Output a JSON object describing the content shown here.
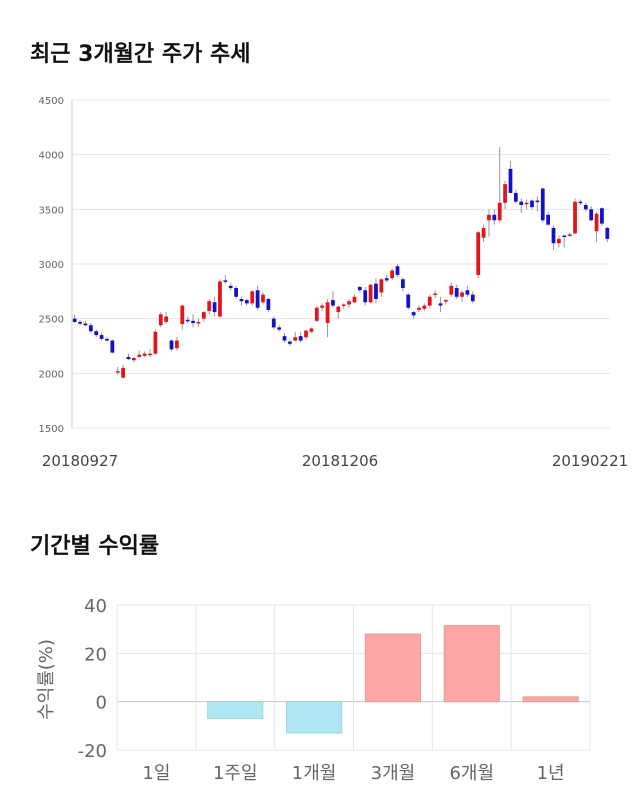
{
  "titles": {
    "price_trend": "최근 3개월간 주가 추세",
    "returns": "기간별 수익률"
  },
  "colors": {
    "up": "#e0161b",
    "down": "#1212c8",
    "positive_bar": "#ffa6a6",
    "negative_bar": "#aee6f2",
    "grid": "#e6e6e6"
  },
  "chart_data": [
    {
      "type": "candlestick",
      "title": "최근 3개월간 주가 추세",
      "ylim": [
        1500,
        4500
      ],
      "yticks": [
        1500,
        2000,
        2500,
        3000,
        3500,
        4000,
        4500
      ],
      "xtick_labels": [
        "20180927",
        "20181206",
        "20190221"
      ],
      "grid": true,
      "series": [
        {
          "name": "",
          "ohlc": [
            [
              2500,
              2535,
              2460,
              2470
            ],
            [
              2470,
              2490,
              2440,
              2455
            ],
            [
              2455,
              2480,
              2430,
              2440
            ],
            [
              2440,
              2460,
              2370,
              2385
            ],
            [
              2385,
              2400,
              2330,
              2350
            ],
            [
              2350,
              2370,
              2300,
              2315
            ],
            [
              2315,
              2330,
              2290,
              2300
            ],
            [
              2300,
              2310,
              2180,
              2190
            ],
            [
              2010,
              2060,
              1990,
              2020
            ],
            [
              1960,
              2080,
              1950,
              2050
            ],
            [
              2150,
              2180,
              2120,
              2130
            ],
            [
              2120,
              2150,
              2100,
              2140
            ],
            [
              2150,
              2210,
              2140,
              2170
            ],
            [
              2160,
              2200,
              2150,
              2180
            ],
            [
              2170,
              2220,
              2150,
              2180
            ],
            [
              2180,
              2400,
              2170,
              2380
            ],
            [
              2440,
              2560,
              2420,
              2540
            ],
            [
              2470,
              2560,
              2450,
              2520
            ],
            [
              2300,
              2310,
              2200,
              2220
            ],
            [
              2230,
              2330,
              2210,
              2300
            ],
            [
              2450,
              2630,
              2400,
              2620
            ],
            [
              2490,
              2520,
              2460,
              2480
            ],
            [
              2480,
              2540,
              2420,
              2460
            ],
            [
              2460,
              2500,
              2430,
              2470
            ],
            [
              2500,
              2570,
              2470,
              2560
            ],
            [
              2570,
              2680,
              2540,
              2660
            ],
            [
              2650,
              2700,
              2520,
              2560
            ],
            [
              2520,
              2860,
              2510,
              2840
            ],
            [
              2850,
              2900,
              2820,
              2840
            ],
            [
              2800,
              2830,
              2760,
              2780
            ],
            [
              2780,
              2800,
              2680,
              2700
            ],
            [
              2680,
              2700,
              2620,
              2660
            ],
            [
              2670,
              2680,
              2620,
              2640
            ],
            [
              2640,
              2760,
              2620,
              2750
            ],
            [
              2760,
              2800,
              2580,
              2600
            ],
            [
              2650,
              2740,
              2630,
              2720
            ],
            [
              2680,
              2690,
              2560,
              2580
            ],
            [
              2500,
              2520,
              2400,
              2420
            ],
            [
              2420,
              2440,
              2380,
              2400
            ],
            [
              2340,
              2370,
              2280,
              2300
            ],
            [
              2290,
              2310,
              2250,
              2270
            ],
            [
              2300,
              2380,
              2290,
              2330
            ],
            [
              2340,
              2380,
              2280,
              2300
            ],
            [
              2330,
              2400,
              2310,
              2390
            ],
            [
              2380,
              2420,
              2370,
              2410
            ],
            [
              2480,
              2620,
              2470,
              2600
            ],
            [
              2600,
              2640,
              2570,
              2620
            ],
            [
              2460,
              2680,
              2330,
              2650
            ],
            [
              2670,
              2750,
              2600,
              2620
            ],
            [
              2560,
              2620,
              2500,
              2610
            ],
            [
              2620,
              2640,
              2590,
              2630
            ],
            [
              2630,
              2680,
              2600,
              2660
            ],
            [
              2650,
              2720,
              2640,
              2700
            ],
            [
              2790,
              2800,
              2740,
              2760
            ],
            [
              2760,
              2790,
              2620,
              2650
            ],
            [
              2650,
              2820,
              2640,
              2810
            ],
            [
              2820,
              2870,
              2640,
              2680
            ],
            [
              2740,
              2870,
              2700,
              2860
            ],
            [
              2870,
              2900,
              2830,
              2850
            ],
            [
              2870,
              2960,
              2850,
              2940
            ],
            [
              2980,
              3000,
              2880,
              2900
            ],
            [
              2860,
              2880,
              2750,
              2780
            ],
            [
              2720,
              2740,
              2580,
              2600
            ],
            [
              2560,
              2570,
              2500,
              2530
            ],
            [
              2580,
              2620,
              2560,
              2600
            ],
            [
              2590,
              2640,
              2570,
              2620
            ],
            [
              2620,
              2720,
              2600,
              2700
            ],
            [
              2720,
              2760,
              2690,
              2730
            ],
            [
              2640,
              2700,
              2560,
              2620
            ],
            [
              2660,
              2680,
              2630,
              2670
            ],
            [
              2720,
              2830,
              2700,
              2800
            ],
            [
              2780,
              2810,
              2680,
              2700
            ],
            [
              2700,
              2760,
              2650,
              2740
            ],
            [
              2760,
              2800,
              2700,
              2720
            ],
            [
              2720,
              2750,
              2640,
              2660
            ],
            [
              2900,
              3300,
              2870,
              3290
            ],
            [
              3240,
              3360,
              3200,
              3330
            ],
            [
              3400,
              3500,
              3250,
              3450
            ],
            [
              3450,
              3500,
              3360,
              3400
            ],
            [
              3400,
              4070,
              3380,
              3560
            ],
            [
              3560,
              3760,
              3500,
              3730
            ],
            [
              3870,
              3940,
              3650,
              3650
            ],
            [
              3650,
              3680,
              3550,
              3570
            ],
            [
              3570,
              3600,
              3470,
              3540
            ],
            [
              3560,
              3590,
              3500,
              3560
            ],
            [
              3580,
              3590,
              3500,
              3520
            ],
            [
              3580,
              3620,
              3480,
              3570
            ],
            [
              3690,
              3700,
              3380,
              3400
            ],
            [
              3450,
              3480,
              3350,
              3360
            ],
            [
              3330,
              3350,
              3130,
              3190
            ],
            [
              3190,
              3260,
              3150,
              3230
            ],
            [
              3260,
              3270,
              3150,
              3250
            ],
            [
              3260,
              3290,
              3250,
              3270
            ],
            [
              3280,
              3600,
              3270,
              3570
            ],
            [
              3570,
              3590,
              3540,
              3560
            ],
            [
              3540,
              3560,
              3480,
              3500
            ],
            [
              3500,
              3530,
              3390,
              3400
            ],
            [
              3300,
              3480,
              3200,
              3460
            ],
            [
              3510,
              3520,
              3350,
              3370
            ],
            [
              3330,
              3340,
              3200,
              3230
            ]
          ]
        }
      ]
    },
    {
      "type": "bar",
      "title": "기간별 수익률",
      "ylabel": "수익률(%)",
      "ylim": [
        -20,
        40
      ],
      "yticks": [
        40,
        20,
        0,
        -20
      ],
      "grid": true,
      "categories": [
        "1일",
        "1주일",
        "1개월",
        "3개월",
        "6개월",
        "1년"
      ],
      "values": [
        0,
        -7,
        -13,
        28,
        31.5,
        2
      ]
    }
  ]
}
